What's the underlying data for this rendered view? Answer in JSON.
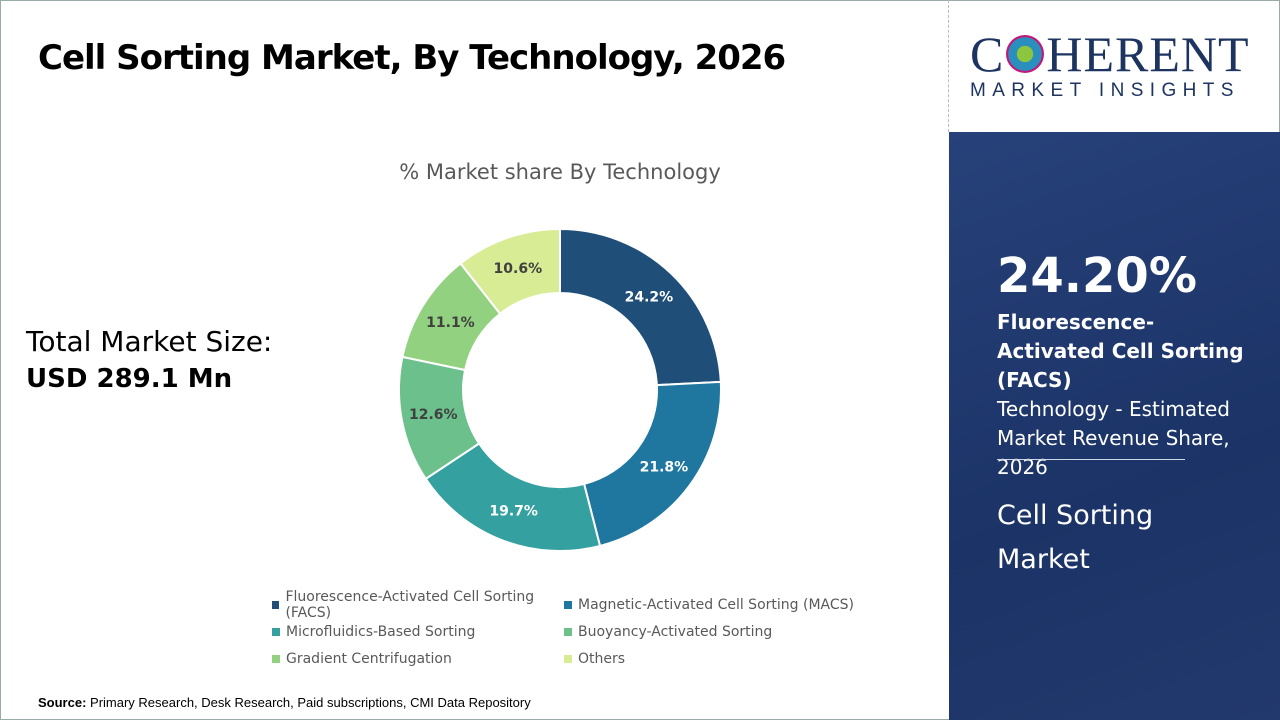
{
  "title": "Cell Sorting Market, By Technology, 2026",
  "total": {
    "label": "Total Market Size:",
    "value": "USD 289.1 Mn"
  },
  "source": {
    "label": "Source:",
    "text": " Primary Research, Desk Research, Paid subscriptions, CMI Data Repository"
  },
  "logo": {
    "brand": "COHERENT",
    "tagline": "MARKET INSIGHTS"
  },
  "panel": {
    "percent": "24.20%",
    "highlight": "Fluorescence-Activated Cell Sorting (FACS)",
    "description": "Technology - Estimated Market Revenue Share, 2026",
    "market": "Cell Sorting Market"
  },
  "chart_data": {
    "type": "pie",
    "donut": true,
    "title": "% Market share By Technology",
    "categories": [
      "Fluorescence-Activated Cell Sorting (FACS)",
      "Magnetic-Activated Cell Sorting (MACS)",
      "Microfluidics-Based Sorting",
      "Buoyancy-Activated Sorting",
      "Gradient Centrifugation",
      "Others"
    ],
    "values": [
      24.2,
      21.8,
      19.7,
      12.6,
      11.1,
      10.6
    ],
    "labels": [
      "24.2%",
      "21.8%",
      "19.7%",
      "12.6%",
      "11.1%",
      "10.6%"
    ],
    "colors": [
      "#1f4e79",
      "#1f77a0",
      "#35a0a0",
      "#6cc08c",
      "#91d17f",
      "#d7ec94"
    ],
    "legend": "bottom"
  }
}
